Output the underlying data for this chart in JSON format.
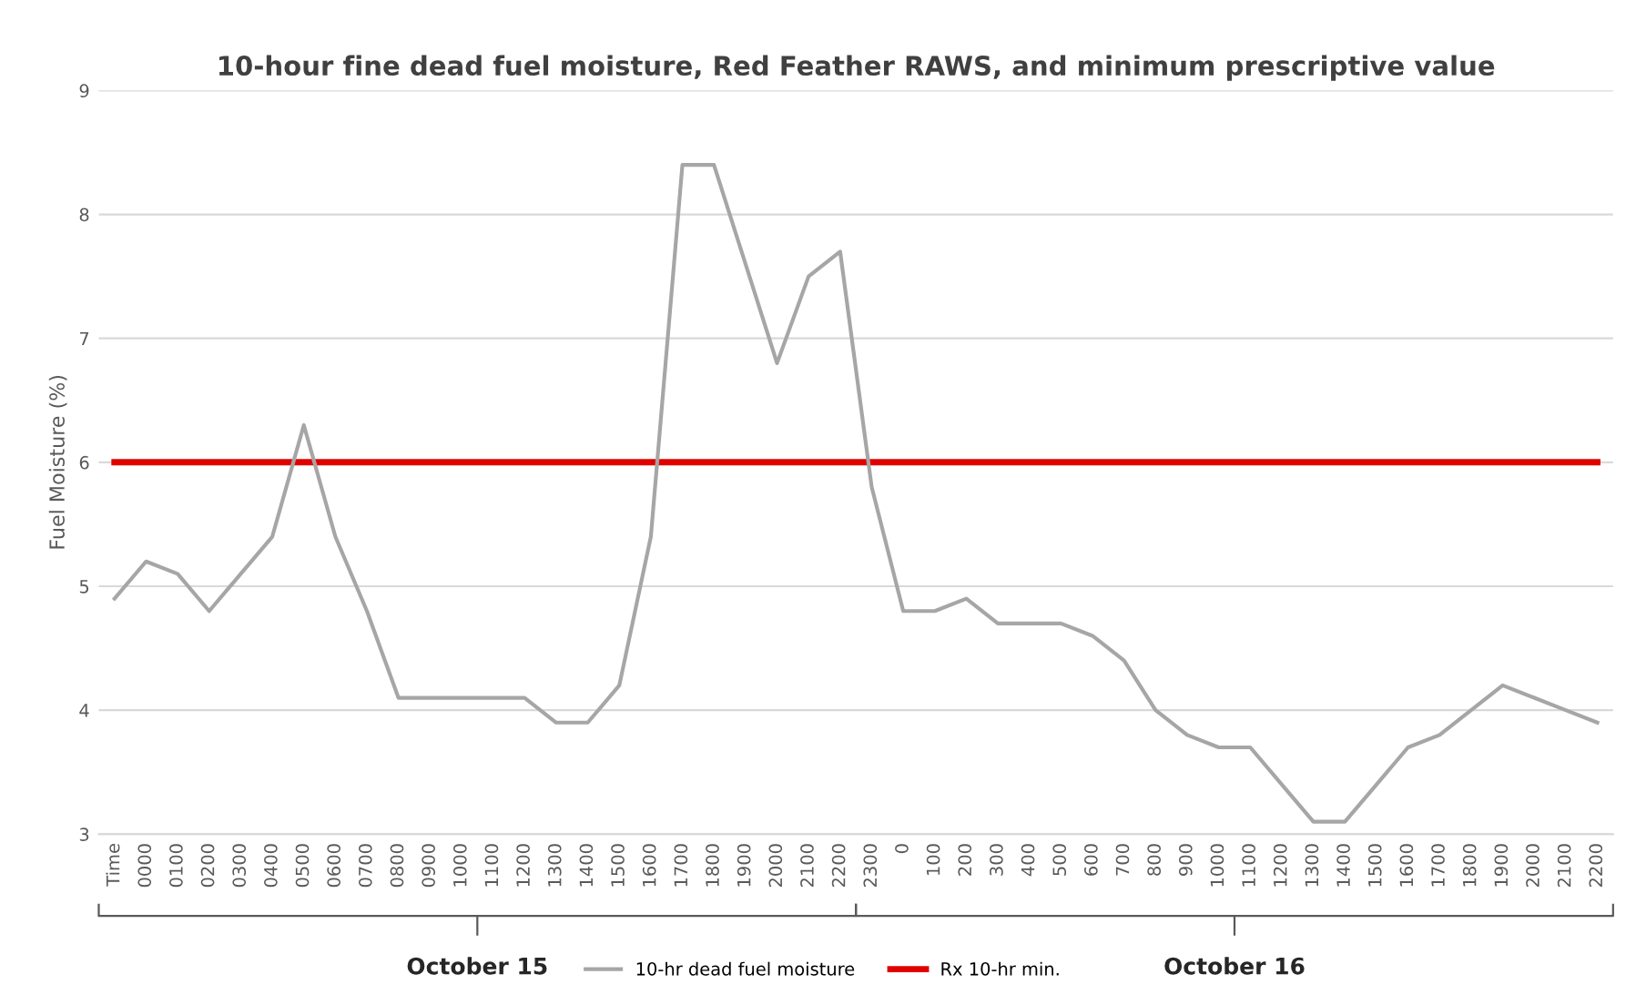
{
  "chart_data": {
    "type": "line",
    "title": "10-hour fine dead fuel moisture, Red Feather RAWS, and minimum prescriptive value",
    "ylabel": "Fuel Moisture (%)",
    "categories": [
      "Time",
      "0000",
      "0100",
      "0200",
      "0300",
      "0400",
      "0500",
      "0600",
      "0700",
      "0800",
      "0900",
      "1000",
      "1100",
      "1200",
      "1300",
      "1400",
      "1500",
      "1600",
      "1700",
      "1800",
      "1900",
      "2000",
      "2100",
      "2200",
      "2300",
      "0",
      "100",
      "200",
      "300",
      "400",
      "500",
      "600",
      "700",
      "800",
      "900",
      "1000",
      "1100",
      "1200",
      "1300",
      "1400",
      "1500",
      "1600",
      "1700",
      "1800",
      "1900",
      "2000",
      "2100",
      "2200"
    ],
    "series": [
      {
        "name": "10-hr dead fuel moisture",
        "color": "#a6a6a6",
        "values": [
          4.9,
          5.2,
          5.1,
          4.8,
          5.1,
          5.4,
          6.3,
          5.4,
          4.8,
          4.1,
          4.1,
          4.1,
          4.1,
          4.1,
          3.9,
          3.9,
          4.2,
          5.4,
          8.4,
          8.4,
          7.6,
          6.8,
          7.5,
          7.7,
          5.8,
          4.8,
          4.8,
          4.9,
          4.7,
          4.7,
          4.7,
          4.6,
          4.4,
          4.0,
          3.8,
          3.7,
          3.7,
          3.4,
          3.1,
          3.1,
          3.4,
          3.7,
          3.8,
          4.0,
          4.2,
          4.1,
          4.0,
          3.9
        ]
      },
      {
        "name": "Rx 10-hr min.",
        "color": "#e00000",
        "values": [
          6,
          6,
          6,
          6,
          6,
          6,
          6,
          6,
          6,
          6,
          6,
          6,
          6,
          6,
          6,
          6,
          6,
          6,
          6,
          6,
          6,
          6,
          6,
          6,
          6,
          6,
          6,
          6,
          6,
          6,
          6,
          6,
          6,
          6,
          6,
          6,
          6,
          6,
          6,
          6,
          6,
          6,
          6,
          6,
          6,
          6,
          6,
          6
        ]
      }
    ],
    "annotations": [
      "October 15",
      "October 16"
    ],
    "ylim": [
      3,
      9
    ],
    "yticks": [
      3,
      4,
      5,
      6,
      7,
      8,
      9
    ],
    "grid": "y",
    "legend": "bottom",
    "marker": "none",
    "line_style": "solid"
  }
}
